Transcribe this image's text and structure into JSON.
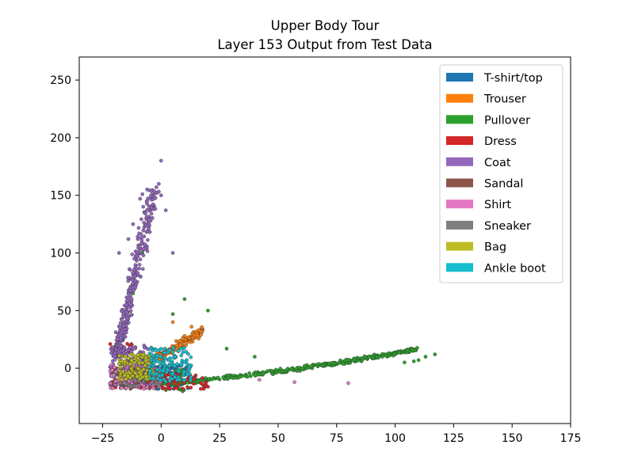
{
  "chart_data": {
    "type": "scatter",
    "title": "Upper Body Tour",
    "subtitle": "Layer 153 Output from Test Data",
    "xlabel": "",
    "ylabel": "",
    "xlim": [
      -35,
      175
    ],
    "ylim": [
      -48,
      270
    ],
    "x_ticks": [
      -25,
      0,
      25,
      50,
      75,
      100,
      125,
      150,
      175
    ],
    "y_ticks": [
      0,
      50,
      100,
      150,
      200,
      250
    ],
    "x_tick_labels": [
      "−25",
      "0",
      "25",
      "50",
      "75",
      "100",
      "125",
      "150",
      "175"
    ],
    "y_tick_labels": [
      "0",
      "50",
      "100",
      "150",
      "200",
      "250"
    ],
    "grid": false,
    "legend_position": "top-right",
    "series": [
      {
        "name": "T-shirt/top",
        "color": "#1f77b4",
        "clusters": [
          {
            "n": 130,
            "x": [
              -8,
              12
            ],
            "y": [
              -18,
              2
            ]
          },
          {
            "n": 40,
            "x": [
              -18,
              -5
            ],
            "y": [
              -15,
              5
            ]
          }
        ]
      },
      {
        "name": "Trouser",
        "color": "#ff7f0e",
        "clusters": [
          {
            "n": 150,
            "band": true,
            "x": [
              -5,
              18
            ],
            "y0": 5,
            "slope": 1.2,
            "spread": 6
          }
        ],
        "points": [
          [
            13,
            36
          ],
          [
            16,
            33
          ],
          [
            17,
            29
          ],
          [
            5,
            40
          ],
          [
            10,
            28
          ]
        ]
      },
      {
        "name": "Pullover",
        "color": "#2ca02c",
        "clusters": [
          {
            "n": 420,
            "band": true,
            "x": [
              0,
              110
            ],
            "y0": -14,
            "slope": 0.18,
            "spread": 2.5,
            "curve": 0.0009
          },
          {
            "n": 60,
            "x": [
              -18,
              10
            ],
            "y": [
              -20,
              0
            ]
          }
        ],
        "points": [
          [
            117,
            12
          ],
          [
            113,
            10
          ],
          [
            108,
            6
          ],
          [
            110,
            7
          ],
          [
            104,
            5
          ],
          [
            20,
            50
          ],
          [
            10,
            60
          ],
          [
            28,
            17
          ],
          [
            40,
            10
          ],
          [
            -12,
            65
          ],
          [
            -8,
            100
          ],
          [
            5,
            47
          ]
        ]
      },
      {
        "name": "Dress",
        "color": "#d62728",
        "clusters": [
          {
            "n": 120,
            "x": [
              -20,
              20
            ],
            "y": [
              -18,
              -5
            ]
          },
          {
            "n": 25,
            "x": [
              -22,
              -12
            ],
            "y": [
              10,
              22
            ]
          }
        ]
      },
      {
        "name": "Coat",
        "color": "#9467bd",
        "clusters": [
          {
            "n": 340,
            "band": true,
            "vertical": true,
            "y": [
              10,
              155
            ],
            "x0": -19,
            "xslope": 0.11,
            "spread": 3.5
          },
          {
            "n": 150,
            "x": [
              -22,
              -5
            ],
            "y": [
              -15,
              20
            ]
          }
        ],
        "points": [
          [
            0,
            180
          ],
          [
            -1,
            160
          ],
          [
            -2,
            157
          ],
          [
            -6,
            155
          ],
          [
            -8,
            151
          ],
          [
            -9,
            147
          ],
          [
            0,
            150
          ],
          [
            2,
            137
          ],
          [
            5,
            100
          ],
          [
            -18,
            100
          ],
          [
            -14,
            112
          ],
          [
            -12,
            125
          ]
        ]
      },
      {
        "name": "Sandal",
        "color": "#8c564b",
        "clusters": [
          {
            "n": 55,
            "x": [
              -22,
              0
            ],
            "y": [
              -18,
              0
            ]
          }
        ]
      },
      {
        "name": "Shirt",
        "color": "#e377c2",
        "clusters": [
          {
            "n": 110,
            "x": [
              -22,
              0
            ],
            "y": [
              -18,
              3
            ]
          }
        ],
        "points": [
          [
            42,
            -10
          ],
          [
            57,
            -12
          ],
          [
            80,
            -13
          ]
        ]
      },
      {
        "name": "Sneaker",
        "color": "#7f7f7f",
        "clusters": [
          {
            "n": 55,
            "x": [
              -18,
              2
            ],
            "y": [
              -16,
              5
            ]
          }
        ]
      },
      {
        "name": "Bag",
        "color": "#bcbd22",
        "clusters": [
          {
            "n": 140,
            "x": [
              -18,
              -3
            ],
            "y": [
              -10,
              12
            ]
          }
        ]
      },
      {
        "name": "Ankle boot",
        "color": "#17becf",
        "clusters": [
          {
            "n": 150,
            "x": [
              -5,
              13
            ],
            "y": [
              -12,
              18
            ]
          }
        ]
      }
    ]
  }
}
